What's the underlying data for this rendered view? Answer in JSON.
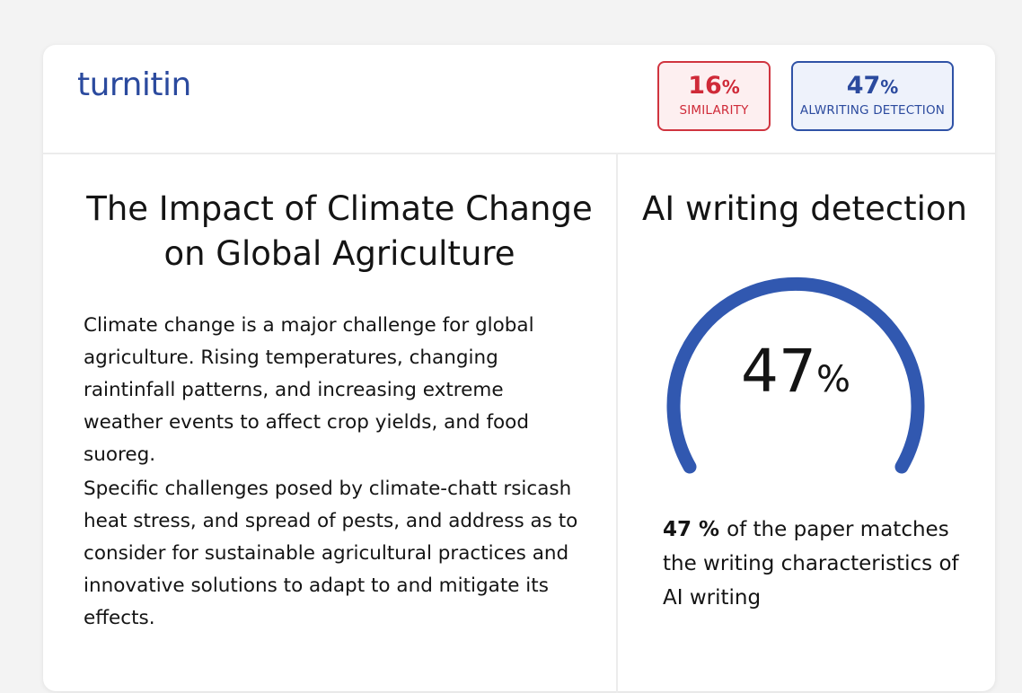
{
  "header": {
    "logo": "turnitin",
    "badges": [
      {
        "value": "16",
        "unit": "%",
        "label": "SIMILARITY"
      },
      {
        "value": "47",
        "unit": "%",
        "label": "ALWRITING DETECTION"
      }
    ]
  },
  "document": {
    "title": "The Impact of Climate Change on Global Agriculture",
    "paragraphs": [
      "Climate change is a major challenge for global agriculture. Rising temperatures, changing raintinfall patterns, and increasing extreme weather events to affect crop yields, and food suoreg.",
      "Specific challenges posed by climate-chatt rsicash heat stress, and spread of pests, and address as to consider for sustainable agricultural practices and innovative solutions to adapt to and mitigate its effects."
    ]
  },
  "panel": {
    "title": "AI writing detection",
    "gauge": {
      "value": "47",
      "unit": "%"
    },
    "summary": {
      "value": "47 %",
      "text": "of the paper matches the writing characteristics of AI writing"
    }
  }
}
